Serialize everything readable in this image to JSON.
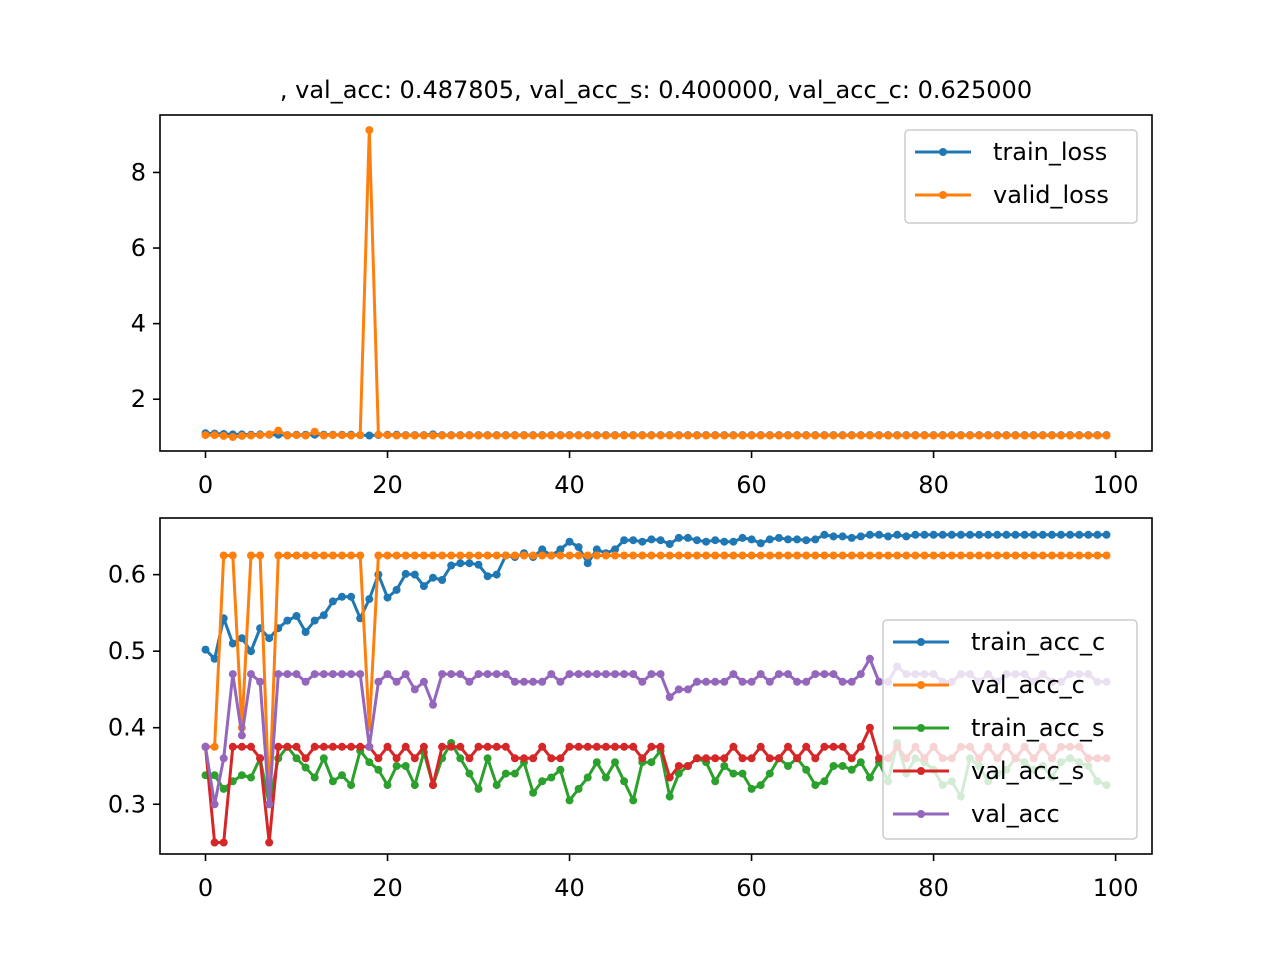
{
  "figure": {
    "title": ", val_acc: 0.487805, val_acc_s: 0.400000, val_acc_c: 0.625000"
  },
  "chart_data": [
    {
      "type": "line",
      "xlim": [
        -5,
        104
      ],
      "ylim": [
        0.63,
        9.52
      ],
      "xticks": [
        "0",
        "20",
        "40",
        "60",
        "80",
        "100"
      ],
      "yticks": [
        "2",
        "4",
        "6",
        "8"
      ],
      "legend_position": "top-right",
      "grid": false,
      "series": [
        {
          "name": "train_loss",
          "color": "#1f77b4",
          "values": [
            1.1,
            1.09,
            1.08,
            1.07,
            1.07,
            1.06,
            1.07,
            1.06,
            1.06,
            1.05,
            1.06,
            1.06,
            1.06,
            1.06,
            1.06,
            1.06,
            1.06,
            1.05,
            1.04,
            1.05,
            1.06,
            1.06,
            1.05,
            1.05,
            1.05,
            1.07,
            1.05,
            1.05,
            1.05,
            1.05,
            1.05,
            1.05,
            1.05,
            1.05,
            1.05,
            1.05,
            1.05,
            1.05,
            1.05,
            1.05,
            1.05,
            1.05,
            1.05,
            1.05,
            1.05,
            1.05,
            1.05,
            1.05,
            1.05,
            1.05,
            1.05,
            1.05,
            1.05,
            1.05,
            1.05,
            1.05,
            1.05,
            1.05,
            1.05,
            1.05,
            1.05,
            1.05,
            1.05,
            1.05,
            1.05,
            1.05,
            1.05,
            1.05,
            1.05,
            1.05,
            1.05,
            1.05,
            1.05,
            1.05,
            1.05,
            1.05,
            1.05,
            1.05,
            1.05,
            1.05,
            1.05,
            1.05,
            1.05,
            1.05,
            1.05,
            1.05,
            1.05,
            1.05,
            1.05,
            1.05,
            1.05,
            1.05,
            1.05,
            1.05,
            1.05,
            1.05,
            1.05,
            1.05,
            1.05,
            1.05
          ]
        },
        {
          "name": "valid_loss",
          "color": "#ff7f0e",
          "values": [
            1.05,
            1.05,
            1.03,
            1.0,
            1.03,
            1.04,
            1.05,
            1.07,
            1.17,
            1.04,
            1.05,
            1.04,
            1.14,
            1.04,
            1.05,
            1.05,
            1.04,
            1.05,
            9.12,
            1.06,
            1.05,
            1.04,
            1.04,
            1.04,
            1.04,
            1.04,
            1.04,
            1.04,
            1.04,
            1.04,
            1.04,
            1.04,
            1.04,
            1.04,
            1.04,
            1.04,
            1.04,
            1.04,
            1.04,
            1.04,
            1.04,
            1.04,
            1.04,
            1.04,
            1.04,
            1.04,
            1.04,
            1.04,
            1.04,
            1.04,
            1.04,
            1.04,
            1.04,
            1.04,
            1.04,
            1.04,
            1.04,
            1.04,
            1.04,
            1.04,
            1.04,
            1.04,
            1.04,
            1.04,
            1.04,
            1.04,
            1.04,
            1.04,
            1.04,
            1.04,
            1.04,
            1.04,
            1.04,
            1.04,
            1.04,
            1.04,
            1.04,
            1.04,
            1.04,
            1.04,
            1.04,
            1.04,
            1.04,
            1.04,
            1.04,
            1.04,
            1.04,
            1.04,
            1.04,
            1.04,
            1.04,
            1.04,
            1.04,
            1.04,
            1.04,
            1.04,
            1.04,
            1.04,
            1.04,
            1.04
          ]
        }
      ]
    },
    {
      "type": "line",
      "xlim": [
        -5,
        104
      ],
      "ylim": [
        0.235,
        0.674
      ],
      "xticks": [
        "0",
        "20",
        "40",
        "60",
        "80",
        "100"
      ],
      "yticks": [
        "0.3",
        "0.4",
        "0.5",
        "0.6"
      ],
      "legend_position": "lower-right",
      "grid": false,
      "series": [
        {
          "name": "train_acc_c",
          "color": "#1f77b4",
          "values": [
            0.502,
            0.49,
            0.543,
            0.51,
            0.517,
            0.5,
            0.53,
            0.517,
            0.53,
            0.54,
            0.546,
            0.525,
            0.54,
            0.547,
            0.565,
            0.571,
            0.571,
            0.543,
            0.568,
            0.6,
            0.57,
            0.58,
            0.601,
            0.6,
            0.585,
            0.596,
            0.593,
            0.612,
            0.615,
            0.615,
            0.613,
            0.598,
            0.6,
            0.625,
            0.623,
            0.628,
            0.623,
            0.633,
            0.625,
            0.633,
            0.643,
            0.636,
            0.615,
            0.633,
            0.628,
            0.633,
            0.645,
            0.645,
            0.643,
            0.646,
            0.645,
            0.64,
            0.648,
            0.648,
            0.645,
            0.643,
            0.645,
            0.643,
            0.643,
            0.648,
            0.646,
            0.641,
            0.646,
            0.648,
            0.646,
            0.646,
            0.645,
            0.646,
            0.652,
            0.65,
            0.65,
            0.648,
            0.65,
            0.652,
            0.652,
            0.65,
            0.652,
            0.65,
            0.652,
            0.652,
            0.652,
            0.652,
            0.652,
            0.652,
            0.652,
            0.652,
            0.652,
            0.652,
            0.652,
            0.652,
            0.652,
            0.652,
            0.652,
            0.652,
            0.652,
            0.652,
            0.652,
            0.652,
            0.652,
            0.652
          ]
        },
        {
          "name": "val_acc_c",
          "color": "#ff7f0e",
          "values": [
            0.375,
            0.375,
            0.625,
            0.625,
            0.4,
            0.625,
            0.625,
            0.3,
            0.625,
            0.625,
            0.625,
            0.625,
            0.625,
            0.625,
            0.625,
            0.625,
            0.625,
            0.625,
            0.4,
            0.625,
            0.625,
            0.625,
            0.625,
            0.625,
            0.625,
            0.625,
            0.625,
            0.625,
            0.625,
            0.625,
            0.625,
            0.625,
            0.625,
            0.625,
            0.625,
            0.625,
            0.625,
            0.625,
            0.625,
            0.625,
            0.625,
            0.625,
            0.625,
            0.625,
            0.625,
            0.625,
            0.625,
            0.625,
            0.625,
            0.625,
            0.625,
            0.625,
            0.625,
            0.625,
            0.625,
            0.625,
            0.625,
            0.625,
            0.625,
            0.625,
            0.625,
            0.625,
            0.625,
            0.625,
            0.625,
            0.625,
            0.625,
            0.625,
            0.625,
            0.625,
            0.625,
            0.625,
            0.625,
            0.625,
            0.625,
            0.625,
            0.625,
            0.625,
            0.625,
            0.625,
            0.625,
            0.625,
            0.625,
            0.625,
            0.625,
            0.625,
            0.625,
            0.625,
            0.625,
            0.625,
            0.625,
            0.625,
            0.625,
            0.625,
            0.625,
            0.625,
            0.625,
            0.625,
            0.625,
            0.625
          ]
        },
        {
          "name": "train_acc_s",
          "color": "#2ca02c",
          "values": [
            0.338,
            0.338,
            0.32,
            0.33,
            0.338,
            0.335,
            0.36,
            0.3,
            0.36,
            0.375,
            0.36,
            0.348,
            0.335,
            0.36,
            0.33,
            0.338,
            0.325,
            0.37,
            0.355,
            0.345,
            0.325,
            0.35,
            0.35,
            0.325,
            0.368,
            0.325,
            0.36,
            0.38,
            0.36,
            0.34,
            0.32,
            0.36,
            0.325,
            0.34,
            0.34,
            0.355,
            0.315,
            0.33,
            0.335,
            0.345,
            0.305,
            0.32,
            0.335,
            0.355,
            0.335,
            0.355,
            0.33,
            0.305,
            0.355,
            0.355,
            0.37,
            0.31,
            0.34,
            0.35,
            0.36,
            0.355,
            0.33,
            0.35,
            0.34,
            0.34,
            0.32,
            0.325,
            0.34,
            0.36,
            0.35,
            0.36,
            0.345,
            0.325,
            0.33,
            0.35,
            0.35,
            0.345,
            0.355,
            0.335,
            0.355,
            0.33,
            0.38,
            0.34,
            0.36,
            0.355,
            0.345,
            0.325,
            0.33,
            0.31,
            0.36,
            0.35,
            0.33,
            0.34,
            0.345,
            0.36,
            0.355,
            0.345,
            0.35,
            0.335,
            0.355,
            0.36,
            0.355,
            0.35,
            0.33,
            0.325
          ]
        },
        {
          "name": "val_acc_s",
          "color": "#d62728",
          "values": [
            0.375,
            0.25,
            0.25,
            0.375,
            0.375,
            0.375,
            0.36,
            0.25,
            0.375,
            0.375,
            0.375,
            0.36,
            0.375,
            0.375,
            0.375,
            0.375,
            0.375,
            0.375,
            0.375,
            0.36,
            0.375,
            0.36,
            0.375,
            0.36,
            0.375,
            0.325,
            0.375,
            0.375,
            0.375,
            0.36,
            0.375,
            0.375,
            0.375,
            0.375,
            0.36,
            0.36,
            0.36,
            0.375,
            0.36,
            0.36,
            0.375,
            0.375,
            0.375,
            0.375,
            0.375,
            0.375,
            0.375,
            0.375,
            0.36,
            0.375,
            0.375,
            0.335,
            0.35,
            0.35,
            0.36,
            0.36,
            0.36,
            0.36,
            0.375,
            0.36,
            0.36,
            0.375,
            0.36,
            0.36,
            0.375,
            0.36,
            0.375,
            0.36,
            0.375,
            0.375,
            0.375,
            0.36,
            0.375,
            0.4,
            0.36,
            0.36,
            0.375,
            0.36,
            0.375,
            0.36,
            0.375,
            0.36,
            0.36,
            0.375,
            0.375,
            0.36,
            0.375,
            0.36,
            0.375,
            0.36,
            0.375,
            0.36,
            0.375,
            0.36,
            0.375,
            0.375,
            0.375,
            0.36,
            0.36,
            0.36
          ]
        },
        {
          "name": "val_acc",
          "color": "#9467bd",
          "values": [
            0.375,
            0.3,
            0.36,
            0.47,
            0.39,
            0.47,
            0.46,
            0.3,
            0.47,
            0.47,
            0.47,
            0.46,
            0.47,
            0.47,
            0.47,
            0.47,
            0.47,
            0.47,
            0.375,
            0.46,
            0.47,
            0.46,
            0.47,
            0.45,
            0.46,
            0.43,
            0.47,
            0.47,
            0.47,
            0.46,
            0.47,
            0.47,
            0.47,
            0.47,
            0.46,
            0.46,
            0.46,
            0.46,
            0.47,
            0.46,
            0.47,
            0.47,
            0.47,
            0.47,
            0.47,
            0.47,
            0.47,
            0.47,
            0.46,
            0.47,
            0.47,
            0.44,
            0.45,
            0.45,
            0.46,
            0.46,
            0.46,
            0.46,
            0.47,
            0.46,
            0.46,
            0.47,
            0.46,
            0.47,
            0.47,
            0.46,
            0.46,
            0.47,
            0.47,
            0.47,
            0.46,
            0.46,
            0.47,
            0.49,
            0.46,
            0.46,
            0.48,
            0.47,
            0.47,
            0.47,
            0.47,
            0.46,
            0.46,
            0.47,
            0.47,
            0.46,
            0.47,
            0.46,
            0.47,
            0.47,
            0.47,
            0.46,
            0.47,
            0.46,
            0.46,
            0.47,
            0.47,
            0.47,
            0.46,
            0.46
          ]
        }
      ]
    }
  ]
}
